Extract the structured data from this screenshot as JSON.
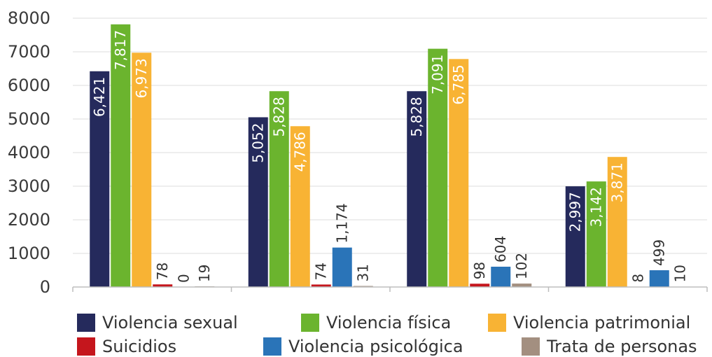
{
  "chart_data": {
    "type": "bar",
    "title": "",
    "xlabel": "",
    "ylabel": "",
    "categories": [
      "",
      "",
      "",
      ""
    ],
    "ylim": [
      0,
      8000
    ],
    "yticks": [
      "0",
      "1000",
      "2000",
      "3000",
      "4000",
      "5000",
      "6000",
      "7000",
      "8000"
    ],
    "grid": true,
    "legend_position": "bottom",
    "series": [
      {
        "name": "Violencia sexual",
        "color": "#252a5c",
        "values": [
          6421,
          5052,
          5828,
          2997
        ],
        "labels": [
          "6,421",
          "5,052",
          "5,828",
          "2,997"
        ]
      },
      {
        "name": "Violencia física",
        "color": "#6bb42e",
        "values": [
          7817,
          5828,
          7091,
          3142
        ],
        "labels": [
          "7,817",
          "5,828",
          "7,091",
          "3,142"
        ]
      },
      {
        "name": "Violencia patrimonial",
        "color": "#f8b334",
        "values": [
          6973,
          4786,
          6785,
          3871
        ],
        "labels": [
          "6,973",
          "4,786",
          "6,785",
          "3,871"
        ]
      },
      {
        "name": "Suicidios",
        "color": "#c5161d",
        "values": [
          78,
          74,
          98,
          8
        ],
        "labels": [
          "78",
          "74",
          "98",
          "8"
        ]
      },
      {
        "name": "Violencia psicológica",
        "color": "#2a74b8",
        "values": [
          0,
          1174,
          604,
          499
        ],
        "labels": [
          "0",
          "1,174",
          "604",
          "499"
        ]
      },
      {
        "name": "Trata de personas",
        "color": "#a38f80",
        "values": [
          19,
          31,
          102,
          10
        ],
        "labels": [
          "19",
          "31",
          "102",
          "10"
        ]
      }
    ]
  }
}
